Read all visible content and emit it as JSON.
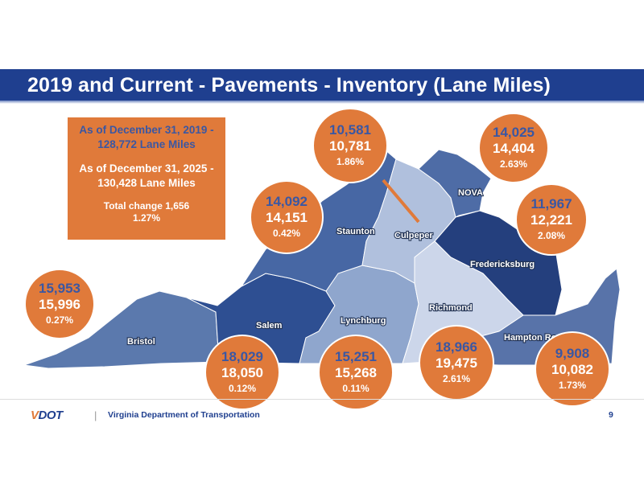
{
  "title": "2019 and Current - Pavements - Inventory (Lane Miles)",
  "summary": {
    "line1": "As of December 31, 2019 -",
    "line2": "128,772 Lane Miles",
    "line3": "As of December 31, 2025 -",
    "line4": "130,428 Lane Miles",
    "line5": "Total change 1,656",
    "line6": "1.27%"
  },
  "regions": {
    "bristol": "Bristol",
    "salem": "Salem",
    "lynchburg": "Lynchburg",
    "staunton": "Staunton",
    "culpeper": "Culpeper",
    "nova": "NOVA",
    "fredericksburg": "Fredericksburg",
    "richmond": "Richmond",
    "hampton_roads": "Hampton Roads"
  },
  "bubbles": {
    "bristol": {
      "v2019": "15,953",
      "current": "15,996",
      "pct": "0.27%"
    },
    "salem": {
      "v2019": "18,029",
      "current": "18,050",
      "pct": "0.12%"
    },
    "lynchburg": {
      "v2019": "15,251",
      "current": "15,268",
      "pct": "0.11%"
    },
    "staunton": {
      "v2019": "14,092",
      "current": "14,151",
      "pct": "0.42%"
    },
    "culpeper": {
      "v2019": "10,581",
      "current": "10,781",
      "pct": "1.86%"
    },
    "nova": {
      "v2019": "14,025",
      "current": "14,404",
      "pct": "2.63%"
    },
    "fredericksburg": {
      "v2019": "11,967",
      "current": "12,221",
      "pct": "2.08%"
    },
    "richmond": {
      "v2019": "18,966",
      "current": "19,475",
      "pct": "2.61%"
    },
    "hampton_roads": {
      "v2019": "9,908",
      "current": "10,082",
      "pct": "1.73%"
    }
  },
  "footer": {
    "logo_v": "V",
    "logo_rest": "DOT",
    "divider": "|",
    "org": "Virginia Department of Transportation",
    "page": "9"
  },
  "colors": {
    "title_bar": "#1f3f8f",
    "orange": "#e07a3a",
    "navy_text": "#3a57a3"
  }
}
